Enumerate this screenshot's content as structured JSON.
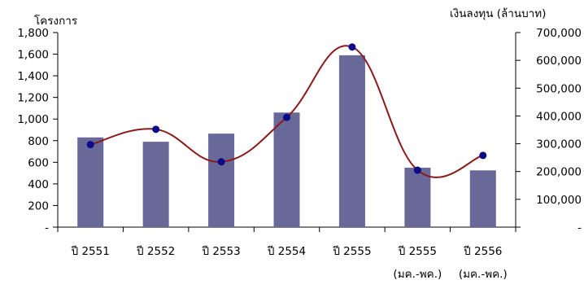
{
  "chart_data": {
    "type": "bar",
    "categories": [
      [
        "ปี 2551"
      ],
      [
        "ปี 2552"
      ],
      [
        "ปี 2553"
      ],
      [
        "ปี 2554"
      ],
      [
        "ปี 2555"
      ],
      [
        "ปี 2555",
        "(มค.-พค.)"
      ],
      [
        "ปี 2556",
        "(มค.-พค.)"
      ]
    ],
    "left_axis": {
      "label": "โครงการ",
      "ticks": [
        "-",
        "200",
        "400",
        "600",
        "800",
        "1,000",
        "1,200",
        "1,400",
        "1,600",
        "1,800"
      ],
      "ylim": [
        0,
        1800
      ]
    },
    "right_axis": {
      "label": "เงินลงทุน (ล้านบาท)",
      "ticks": [
        "-",
        "100,000",
        "200,000",
        "300,000",
        "400,000",
        "500,000",
        "600,000",
        "700,000"
      ],
      "ylim": [
        0,
        700000
      ]
    },
    "series": [
      {
        "type": "bar",
        "axis": "left",
        "color": "#686899",
        "values": [
          830,
          790,
          865,
          1060,
          1590,
          550,
          525
        ]
      },
      {
        "type": "line",
        "axis": "right",
        "line_color": "#8b1a1a",
        "marker_color": "#0a0a8a",
        "values": [
          297000,
          352000,
          235000,
          395000,
          648000,
          205000,
          258000
        ]
      }
    ],
    "grid": false,
    "legend": "none"
  }
}
